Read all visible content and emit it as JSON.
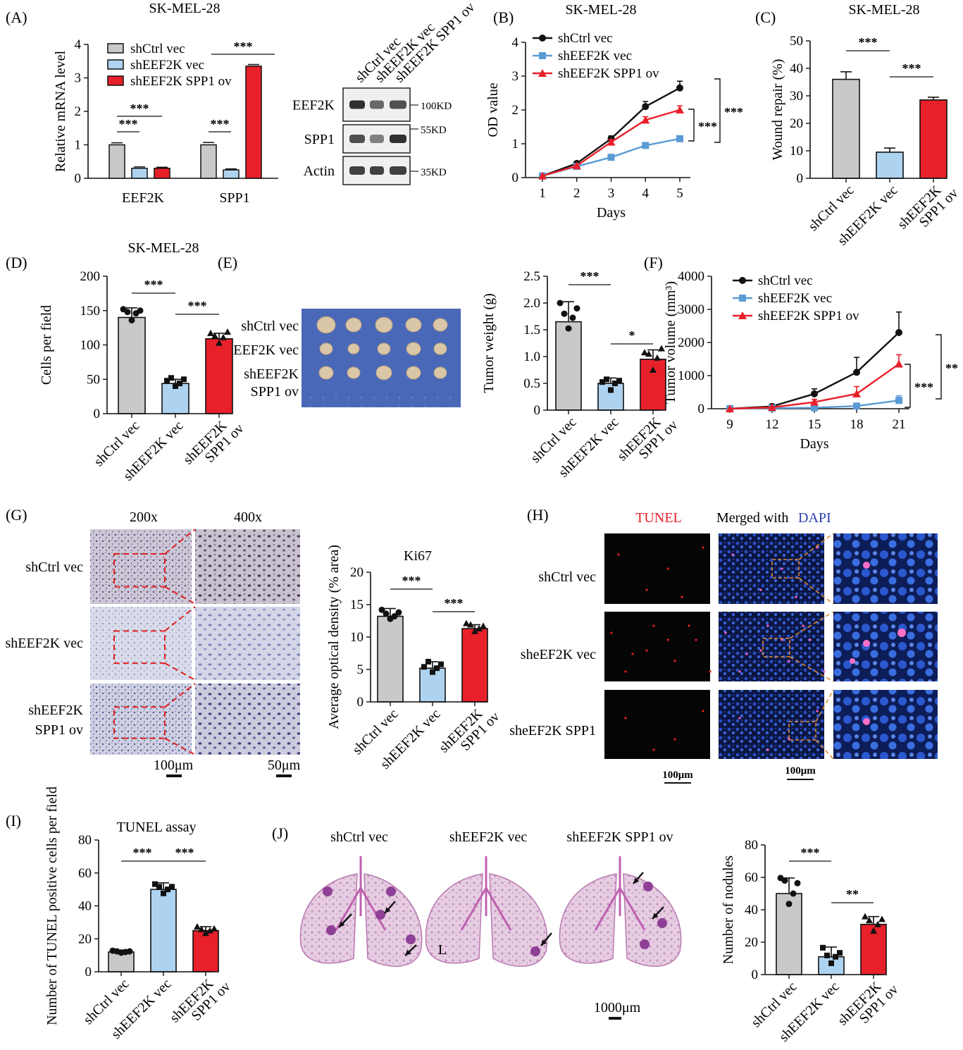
{
  "colors": {
    "ctrl": "#c9c9c9",
    "kd": "#aed3f0",
    "ov": "#e8202a",
    "ctrlLine": "#111111",
    "kdLine": "#5b9bd5",
    "ovLine": "#e8202a",
    "tunelRed": "#e8202a",
    "dapiBlue": "#2a3fb0"
  },
  "panels": {
    "A": "(A)",
    "B": "(B)",
    "C": "(C)",
    "D": "(D)",
    "E": "(E)",
    "F": "(F)",
    "G": "(G)",
    "H": "(H)",
    "I": "(I)",
    "J": "(J)"
  },
  "groups": {
    "ctrl": "shCtrl vec",
    "kd": "shEEF2K vec",
    "ov": "shEEF2K SPP1 ov",
    "ov1": "shEEF2K",
    "ov2": "SPP1 ov"
  },
  "chart_data": [
    {
      "id": "A",
      "type": "bar",
      "title": "SK-MEL-28",
      "ylabel": "Relative mRNA level",
      "ylim": [
        0,
        4
      ],
      "yticks": [
        "0",
        "1",
        "2",
        "3",
        "4"
      ],
      "categories": [
        "EEF2K",
        "SPP1"
      ],
      "series": [
        {
          "name": "shCtrl vec",
          "values": [
            1.0,
            1.0
          ]
        },
        {
          "name": "shEEF2K vec",
          "values": [
            0.3,
            0.25
          ]
        },
        {
          "name": "shEEF2K SPP1 ov",
          "values": [
            0.3,
            3.35
          ]
        }
      ],
      "sig": [
        "***",
        "***",
        "***",
        "***"
      ]
    },
    {
      "id": "B",
      "type": "line",
      "title": "SK-MEL-28",
      "xlabel": "Days",
      "ylabel": "OD value",
      "x": [
        1,
        2,
        3,
        4,
        5
      ],
      "xticks": [
        "1",
        "2",
        "3",
        "4",
        "5"
      ],
      "ylim": [
        0,
        4
      ],
      "yticks": [
        "0",
        "1",
        "2",
        "3",
        "4"
      ],
      "series": [
        {
          "name": "shCtrl vec",
          "values": [
            0.05,
            0.42,
            1.15,
            2.1,
            2.65
          ]
        },
        {
          "name": "shEEF2K vec",
          "values": [
            0.05,
            0.33,
            0.6,
            0.95,
            1.15
          ]
        },
        {
          "name": "shEEF2K SPP1 ov",
          "values": [
            0.05,
            0.35,
            1.05,
            1.7,
            2.0
          ]
        }
      ],
      "sig": [
        "***",
        "***"
      ]
    },
    {
      "id": "C",
      "type": "bar",
      "title": "SK-MEL-28",
      "ylabel": "Wound repair (%)",
      "ylim": [
        0,
        50
      ],
      "yticks": [
        "0",
        "10",
        "20",
        "30",
        "40",
        "50"
      ],
      "categories": [
        "shCtrl vec",
        "shEEF2K vec",
        "shEEF2K SPP1 ov"
      ],
      "values": [
        36,
        9.5,
        28.5
      ],
      "sig": [
        "***",
        "***"
      ]
    },
    {
      "id": "D",
      "type": "bar",
      "title": "SK-MEL-28",
      "ylabel": "Cells per field",
      "ylim": [
        0,
        200
      ],
      "yticks": [
        "0",
        "50",
        "100",
        "150",
        "200"
      ],
      "categories": [
        "shCtrl vec",
        "shEEF2K vec",
        "shEEF2K SPP1 ov"
      ],
      "values": [
        140,
        44,
        109
      ],
      "sig": [
        "***",
        "***"
      ]
    },
    {
      "id": "E",
      "type": "bar",
      "title": "",
      "ylabel": "Tumor weight (g)",
      "ylim": [
        0,
        2.5
      ],
      "yticks": [
        "0",
        "0.5",
        "1.0",
        "1.5",
        "2.0",
        "2.5"
      ],
      "categories": [
        "shCtrl vec",
        "shEEF2K vec",
        "shEEF2K SPP1 ov"
      ],
      "values": [
        1.65,
        0.5,
        0.95
      ],
      "sig": [
        "***",
        "*"
      ]
    },
    {
      "id": "F",
      "type": "line",
      "title": "",
      "xlabel": "Days",
      "ylabel": "Tumor volume (mm³)",
      "x": [
        9,
        12,
        15,
        18,
        21
      ],
      "xticks": [
        "9",
        "12",
        "15",
        "18",
        "21"
      ],
      "ylim": [
        0,
        4000
      ],
      "yticks": [
        "0",
        "1000",
        "2000",
        "3000",
        "4000"
      ],
      "series": [
        {
          "name": "shCtrl vec",
          "values": [
            0,
            70,
            450,
            1100,
            2300
          ]
        },
        {
          "name": "shEEF2K vec",
          "values": [
            0,
            20,
            30,
            80,
            250
          ]
        },
        {
          "name": "shEEF2K SPP1 ov",
          "values": [
            0,
            40,
            200,
            450,
            1350
          ]
        }
      ],
      "sig": [
        "***",
        "**"
      ]
    },
    {
      "id": "G",
      "type": "bar",
      "title": "Ki67",
      "ylabel": "Average optical density (% area)",
      "ylim": [
        0,
        20
      ],
      "yticks": [
        "0",
        "5",
        "10",
        "15",
        "20"
      ],
      "categories": [
        "shCtrl vec",
        "shEEF2K vec",
        "shEEF2K SPP1 ov"
      ],
      "values": [
        13.2,
        5.2,
        11.3
      ],
      "sig": [
        "***",
        "***"
      ]
    },
    {
      "id": "I",
      "type": "bar",
      "title": "TUNEL assay",
      "ylabel": "Number of TUNEL positive cells per field",
      "ylim": [
        0,
        80
      ],
      "yticks": [
        "0",
        "20",
        "40",
        "60",
        "80"
      ],
      "categories": [
        "shCtrl vec",
        "shEEF2K vec",
        "shEEF2K SPP1 ov"
      ],
      "values": [
        12,
        50,
        25
      ],
      "sig": [
        "***",
        "***"
      ]
    },
    {
      "id": "J",
      "type": "bar",
      "title": "",
      "ylabel": "Number of nodules",
      "ylim": [
        0,
        80
      ],
      "yticks": [
        "0",
        "20",
        "40",
        "60",
        "80"
      ],
      "categories": [
        "shCtrl vec",
        "shEEF2K vec",
        "shEEF2K SPP1 ov"
      ],
      "values": [
        50,
        11,
        31
      ],
      "sig": [
        "***",
        "**"
      ]
    }
  ],
  "blot": {
    "cols": [
      "shCtrl vec",
      "shEEF2K vec",
      "shEEF2K SPP1 ov"
    ],
    "rows": [
      "EEF2K",
      "SPP1",
      "Actin"
    ],
    "sizes": [
      "100KD",
      "55KD",
      "35KD"
    ]
  },
  "E_rows": {
    "r1": "shCtrl vec",
    "r2": "shEEF2K vec",
    "r3a": "shEEF2K",
    "r3b": "SPP1 ov"
  },
  "G_img": {
    "c1": "200x",
    "c2": "400x",
    "r1": "shCtrl vec",
    "r2": "shEEF2K vec",
    "r3a": "shEEF2K",
    "r3b": "SPP1 ov",
    "s1": "100μm",
    "s2": "50μm"
  },
  "H_img": {
    "c1": "TUNEL",
    "c2a": "Merged with ",
    "c2b": "DAPI",
    "r1": "shCtrl vec",
    "r2": "sheEF2K vec",
    "r3": "sheEF2K SPP1",
    "s": "100μm"
  },
  "J_img": {
    "c1": "shCtrl vec",
    "c2": "shEEF2K vec",
    "c3": "shEEF2K SPP1 ov",
    "L": "L",
    "s": "1000μm"
  }
}
